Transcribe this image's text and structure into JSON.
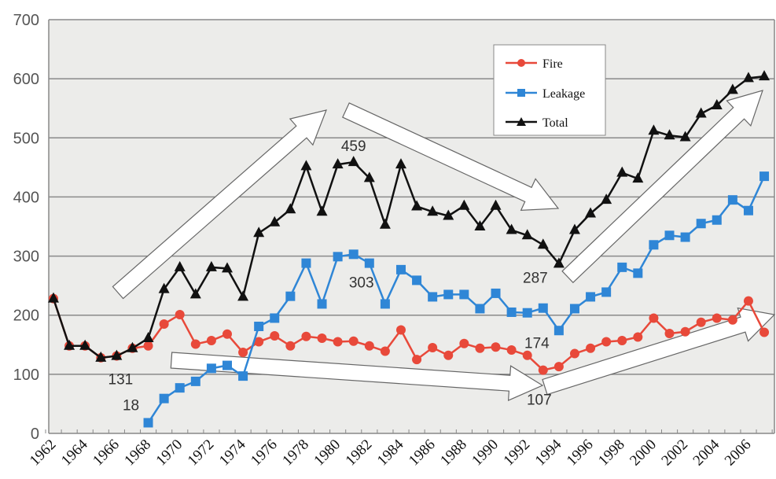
{
  "chart_data": {
    "type": "line",
    "title": "",
    "xlabel": "",
    "ylabel": "",
    "ylim": [
      0,
      700
    ],
    "yticks": [
      0,
      100,
      200,
      300,
      400,
      500,
      600,
      700
    ],
    "xlim": [
      1962,
      2007
    ],
    "xtick_labels": [
      "1962",
      "1964",
      "1966",
      "1968",
      "1970",
      "1972",
      "1974",
      "1976",
      "1978",
      "1980",
      "1982",
      "1984",
      "1986",
      "1988",
      "1990",
      "1992",
      "1994",
      "1996",
      "1998",
      "2000",
      "2002",
      "2004",
      "2006"
    ],
    "grid": "horizontal",
    "legend_position": "top-center",
    "series": [
      {
        "name": "Fire",
        "color": "#e8493a",
        "marker": "circle",
        "x": [
          1962,
          1963,
          1964,
          1965,
          1966,
          1967,
          1968,
          1969,
          1970,
          1971,
          1972,
          1973,
          1974,
          1975,
          1976,
          1977,
          1978,
          1979,
          1980,
          1981,
          1982,
          1983,
          1984,
          1985,
          1986,
          1987,
          1988,
          1989,
          1990,
          1991,
          1992,
          1993,
          1994,
          1995,
          1996,
          1997,
          1998,
          1999,
          2000,
          2001,
          2002,
          2003,
          2004,
          2005,
          2006,
          2007
        ],
        "values": [
          228,
          148,
          148,
          128,
          131,
          144,
          148,
          185,
          201,
          151,
          157,
          168,
          137,
          155,
          165,
          148,
          164,
          161,
          155,
          156,
          148,
          139,
          175,
          125,
          145,
          132,
          152,
          144,
          146,
          141,
          132,
          107,
          113,
          135,
          144,
          155,
          157,
          163,
          195,
          169,
          172,
          188,
          195,
          192,
          224,
          171
        ]
      },
      {
        "name": "Leakage",
        "color": "#2f86d6",
        "marker": "square",
        "x": [
          1968,
          1969,
          1970,
          1971,
          1972,
          1973,
          1974,
          1975,
          1976,
          1977,
          1978,
          1979,
          1980,
          1981,
          1982,
          1983,
          1984,
          1985,
          1986,
          1987,
          1988,
          1989,
          1990,
          1991,
          1992,
          1993,
          1994,
          1995,
          1996,
          1997,
          1998,
          1999,
          2000,
          2001,
          2002,
          2003,
          2004,
          2005,
          2006,
          2007
        ],
        "values": [
          18,
          59,
          77,
          88,
          110,
          115,
          97,
          181,
          195,
          232,
          288,
          219,
          299,
          303,
          288,
          219,
          277,
          259,
          231,
          235,
          235,
          211,
          237,
          205,
          204,
          212,
          174,
          211,
          231,
          239,
          281,
          271,
          319,
          335,
          332,
          355,
          361,
          395,
          377,
          435
        ]
      },
      {
        "name": "Total",
        "color": "#111111",
        "marker": "triangle",
        "x": [
          1962,
          1963,
          1964,
          1965,
          1966,
          1967,
          1968,
          1969,
          1970,
          1971,
          1972,
          1973,
          1974,
          1975,
          1976,
          1977,
          1978,
          1979,
          1980,
          1981,
          1982,
          1983,
          1984,
          1985,
          1986,
          1987,
          1988,
          1989,
          1990,
          1991,
          1992,
          1993,
          1994,
          1995,
          1996,
          1997,
          1998,
          1999,
          2000,
          2001,
          2002,
          2003,
          2004,
          2005,
          2006,
          2007
        ],
        "values": [
          228,
          148,
          148,
          128,
          131,
          144,
          161,
          244,
          281,
          235,
          281,
          279,
          231,
          339,
          357,
          379,
          452,
          375,
          455,
          459,
          432,
          353,
          455,
          384,
          375,
          368,
          385,
          350,
          385,
          344,
          335,
          319,
          287,
          344,
          372,
          395,
          441,
          431,
          512,
          504,
          501,
          541,
          555,
          581,
          601,
          604
        ]
      }
    ],
    "annotations": [
      {
        "text": "459",
        "series": "Total",
        "x": 1981
      },
      {
        "text": "303",
        "series": "Leakage",
        "x": 1981
      },
      {
        "text": "131",
        "series": "Total",
        "x": 1966
      },
      {
        "text": "18",
        "series": "Leakage",
        "x": 1968
      },
      {
        "text": "287",
        "series": "Total",
        "x": 1994
      },
      {
        "text": "174",
        "series": "Leakage",
        "x": 1994
      },
      {
        "text": "107",
        "series": "Fire",
        "x": 1993
      }
    ],
    "trend_arrows": [
      "up 1966-1981",
      "down 1982-1994",
      "up 1994-2007",
      "down-then-up along Fire 1969-2007"
    ]
  }
}
